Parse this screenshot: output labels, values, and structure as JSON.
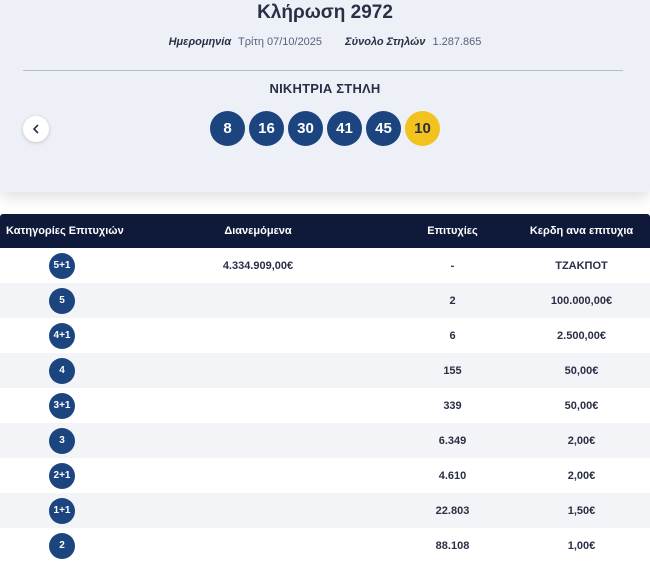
{
  "header": {
    "title": "Κλήρωση 2972",
    "date_label": "Ημερομηνία",
    "date_value": "Τρίτη 07/10/2025",
    "columns_label": "Σύνολο Στηλών",
    "columns_value": "1.287.865",
    "winning_label": "ΝΙΚΗΤΡΙΑ ΣΤΗΛΗ"
  },
  "numbers": [
    "8",
    "16",
    "30",
    "41",
    "45"
  ],
  "bonus": "10",
  "table": {
    "headers": [
      "Κατηγορίες Επιτυχιών",
      "Διανεμόμενα",
      "Επιτυχίες",
      "Κερδη ανα επιτυχια"
    ],
    "rows": [
      {
        "category": "5+1",
        "distributed": "4.334.909,00€",
        "winners": "-",
        "prize": "ΤΖΑΚΠΟΤ"
      },
      {
        "category": "5",
        "distributed": "",
        "winners": "2",
        "prize": "100.000,00€"
      },
      {
        "category": "4+1",
        "distributed": "",
        "winners": "6",
        "prize": "2.500,00€"
      },
      {
        "category": "4",
        "distributed": "",
        "winners": "155",
        "prize": "50,00€"
      },
      {
        "category": "3+1",
        "distributed": "",
        "winners": "339",
        "prize": "50,00€"
      },
      {
        "category": "3",
        "distributed": "",
        "winners": "6.349",
        "prize": "2,00€"
      },
      {
        "category": "2+1",
        "distributed": "",
        "winners": "4.610",
        "prize": "2,00€"
      },
      {
        "category": "1+1",
        "distributed": "",
        "winners": "22.803",
        "prize": "1,50€"
      },
      {
        "category": "2",
        "distributed": "",
        "winners": "88.108",
        "prize": "1,00€"
      }
    ]
  },
  "icons": {
    "prev": "chevron-left-icon"
  },
  "colors": {
    "ball": "#1c4580",
    "bonus_ball": "#f4c21c",
    "table_header": "#0f1a3a"
  }
}
